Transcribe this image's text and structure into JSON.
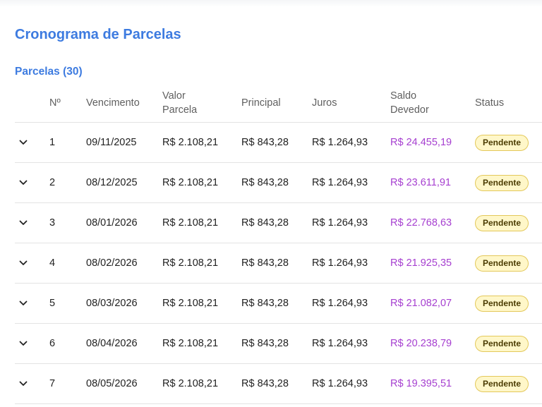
{
  "page_title": "Cronograma de Parcelas",
  "section_title": "Parcelas (30)",
  "table": {
    "headers": {
      "num": "Nº",
      "vencimento": "Vencimento",
      "valor_parcela_1": "Valor",
      "valor_parcela_2": "Parcela",
      "principal": "Principal",
      "juros": "Juros",
      "saldo_1": "Saldo",
      "saldo_2": "Devedor",
      "status": "Status"
    },
    "rows": [
      {
        "num": "1",
        "vencimento": "09/11/2025",
        "valor": "R$ 2.108,21",
        "principal": "R$ 843,28",
        "juros": "R$ 1.264,93",
        "saldo": "R$ 24.455,19",
        "status": "Pendente"
      },
      {
        "num": "2",
        "vencimento": "08/12/2025",
        "valor": "R$ 2.108,21",
        "principal": "R$ 843,28",
        "juros": "R$ 1.264,93",
        "saldo": "R$ 23.611,91",
        "status": "Pendente"
      },
      {
        "num": "3",
        "vencimento": "08/01/2026",
        "valor": "R$ 2.108,21",
        "principal": "R$ 843,28",
        "juros": "R$ 1.264,93",
        "saldo": "R$ 22.768,63",
        "status": "Pendente"
      },
      {
        "num": "4",
        "vencimento": "08/02/2026",
        "valor": "R$ 2.108,21",
        "principal": "R$ 843,28",
        "juros": "R$ 1.264,93",
        "saldo": "R$ 21.925,35",
        "status": "Pendente"
      },
      {
        "num": "5",
        "vencimento": "08/03/2026",
        "valor": "R$ 2.108,21",
        "principal": "R$ 843,28",
        "juros": "R$ 1.264,93",
        "saldo": "R$ 21.082,07",
        "status": "Pendente"
      },
      {
        "num": "6",
        "vencimento": "08/04/2026",
        "valor": "R$ 2.108,21",
        "principal": "R$ 843,28",
        "juros": "R$ 1.264,93",
        "saldo": "R$ 20.238,79",
        "status": "Pendente"
      },
      {
        "num": "7",
        "vencimento": "08/05/2026",
        "valor": "R$ 2.108,21",
        "principal": "R$ 843,28",
        "juros": "R$ 1.264,93",
        "saldo": "R$ 19.395,51",
        "status": "Pendente"
      }
    ]
  },
  "colors": {
    "accent": "#3d7be0",
    "balance": "#a63fd0",
    "badge_bg": "#fff7c9",
    "badge_border": "#e3c85a"
  },
  "icons": {
    "expand": "chevron-down-icon"
  }
}
